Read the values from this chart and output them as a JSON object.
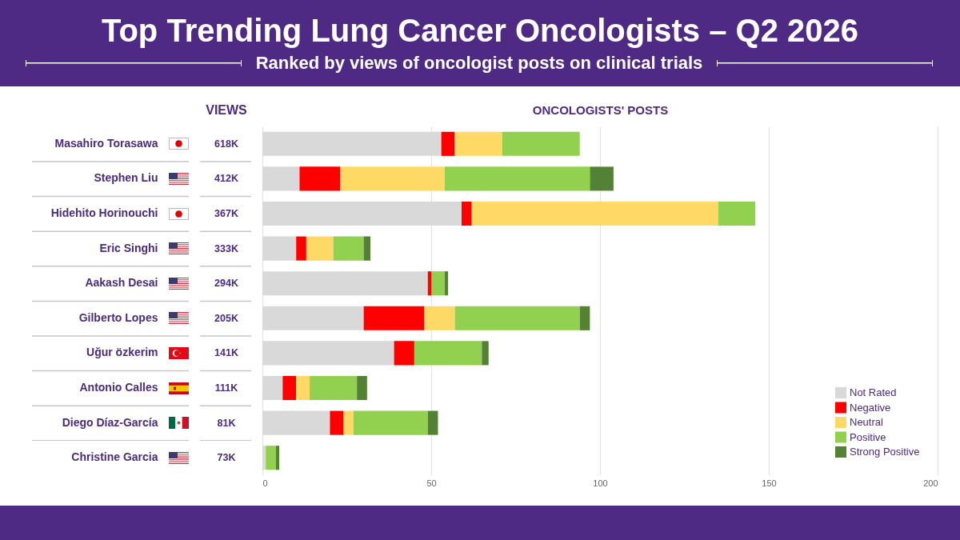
{
  "chart_data": [
    {
      "type": "other",
      "title": "VIEWS",
      "value_labels": [
        "618K",
        "412K",
        "367K",
        "333K",
        "294K",
        "205K",
        "141K",
        "111K",
        "81K",
        "73K"
      ]
    },
    {
      "type": "bar",
      "title": "Top Trending Lung Cancer Oncologists – Q2 2026",
      "subtitle": "Ranked by views of oncologist posts on clinical trials",
      "xlabel": "ONCOLOGISTS' POSTS",
      "orientation": "horizontal",
      "stacked": true,
      "categories": [
        "Masahiro Torasawa",
        "Stephen Liu",
        "Hidehito Horinouchi",
        "Eric Singhi",
        "Aakash Desai",
        "Gilberto Lopes",
        "Uğur özkerim",
        "Antonio Calles",
        "Diego Díaz-García",
        "Christine Garcia"
      ],
      "series": [
        {
          "name": "Not Rated",
          "color": "#d9d9d9",
          "values": [
            53,
            11,
            59,
            10,
            49,
            30,
            39,
            6,
            20,
            1
          ]
        },
        {
          "name": "Negative",
          "color": "#ff0000",
          "values": [
            4,
            12,
            3,
            3,
            1,
            18,
            6,
            4,
            4,
            0
          ]
        },
        {
          "name": "Neutral",
          "color": "#ffd966",
          "values": [
            14,
            31,
            73,
            8,
            0,
            9,
            0,
            4,
            3,
            0
          ]
        },
        {
          "name": "Positive",
          "color": "#92d050",
          "values": [
            23,
            43,
            11,
            9,
            4,
            37,
            20,
            14,
            22,
            3
          ]
        },
        {
          "name": "Strong Positive",
          "color": "#548235",
          "values": [
            0,
            7,
            0,
            2,
            1,
            3,
            2,
            3,
            3,
            1
          ]
        }
      ],
      "xlim": [
        0,
        200
      ],
      "xticks": [
        0,
        50,
        100,
        150,
        200
      ],
      "grid": "x",
      "legend": "bottom right"
    }
  ]
}
